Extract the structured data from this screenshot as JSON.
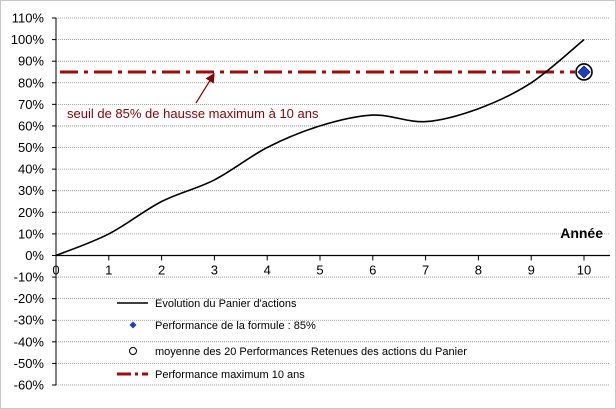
{
  "chart_data": {
    "type": "line",
    "x_ticks": [
      "0",
      "1",
      "2",
      "3",
      "4",
      "5",
      "6",
      "7",
      "8",
      "9",
      "10"
    ],
    "y_ticks": [
      "110%",
      "100%",
      "90%",
      "80%",
      "70%",
      "60%",
      "50%",
      "40%",
      "30%",
      "20%",
      "10%",
      "0%",
      "-10%",
      "-20%",
      "-30%",
      "-40%",
      "-50%",
      "-60%"
    ],
    "xlim": [
      0,
      10
    ],
    "ylim": [
      -60,
      110
    ],
    "grid": true,
    "x_axis_label": "Année",
    "series": [
      {
        "name": "Evolution du Panier d'actions",
        "color": "#000000",
        "x": [
          0,
          1,
          2,
          3,
          4,
          5,
          6,
          7,
          8,
          9,
          10
        ],
        "y": [
          0,
          10,
          25,
          35,
          50,
          60,
          65,
          62,
          68,
          80,
          100
        ]
      }
    ],
    "points": [
      {
        "name": "Performance de la formule : 85%",
        "x": 10,
        "y": 85,
        "color": "#1f3fbf",
        "marker": "diamond"
      },
      {
        "name": "moyenne des 20 Performances Retenues des actions du Panier",
        "x": 10,
        "y": 85,
        "color": "#000000",
        "marker": "circle"
      }
    ],
    "reference_line": {
      "name": "Performance maximum 10 ans",
      "y": 85,
      "color": "#a50a0a",
      "style": "dash-dot"
    },
    "annotation": {
      "text": "seuil de 85% de hausse maximum  à 10 ans",
      "color": "#8b0000",
      "arrow_to": {
        "x": 3,
        "y": 85
      }
    },
    "legend": {
      "placement": "bottom-left",
      "entries": [
        "Evolution du Panier d'actions",
        "Performance de la formule : 85%",
        "moyenne des 20 Performances Retenues des actions du Panier",
        "Performance maximum 10 ans"
      ]
    }
  }
}
